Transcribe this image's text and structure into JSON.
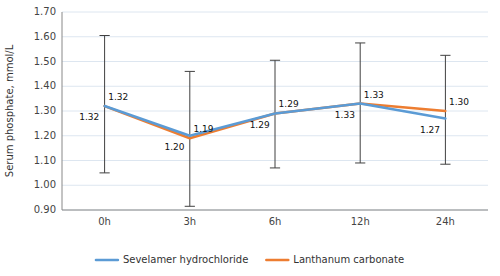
{
  "chart_data": {
    "type": "line",
    "ylabel": "Serum phosphate, mmol/L",
    "categories": [
      "0h",
      "3h",
      "6h",
      "12h",
      "24h"
    ],
    "series": [
      {
        "name": "Sevelamer hydrochloride",
        "color": "#5B9BD5",
        "values": [
          1.32,
          1.2,
          1.29,
          1.33,
          1.27
        ],
        "value_labels": [
          "1.32",
          "1.20",
          "1.29",
          "1.33",
          "1.27"
        ]
      },
      {
        "name": "Lanthanum carbonate",
        "color": "#ED7D31",
        "values": [
          1.32,
          1.19,
          1.29,
          1.33,
          1.3
        ],
        "value_labels": [
          "1.32",
          "1.19",
          "1.29",
          "1.33",
          "1.30"
        ],
        "error_low": [
          0.27,
          0.275,
          0.22,
          0.24,
          0.215
        ],
        "error_high": [
          0.285,
          0.27,
          0.215,
          0.245,
          0.225
        ]
      }
    ],
    "ylim": [
      0.9,
      1.7
    ],
    "yticks": [
      {
        "value": 0.9,
        "label": "0.90"
      },
      {
        "value": 1.0,
        "label": "1.00"
      },
      {
        "value": 1.1,
        "label": "1.10"
      },
      {
        "value": 1.2,
        "label": "1.20"
      },
      {
        "value": 1.3,
        "label": "1.30"
      },
      {
        "value": 1.4,
        "label": "1.40"
      },
      {
        "value": 1.5,
        "label": "1.50"
      },
      {
        "value": 1.6,
        "label": "1.60"
      },
      {
        "value": 1.7,
        "label": "1.70"
      }
    ],
    "grid": true,
    "data_labels": true,
    "legend": "bottom"
  }
}
